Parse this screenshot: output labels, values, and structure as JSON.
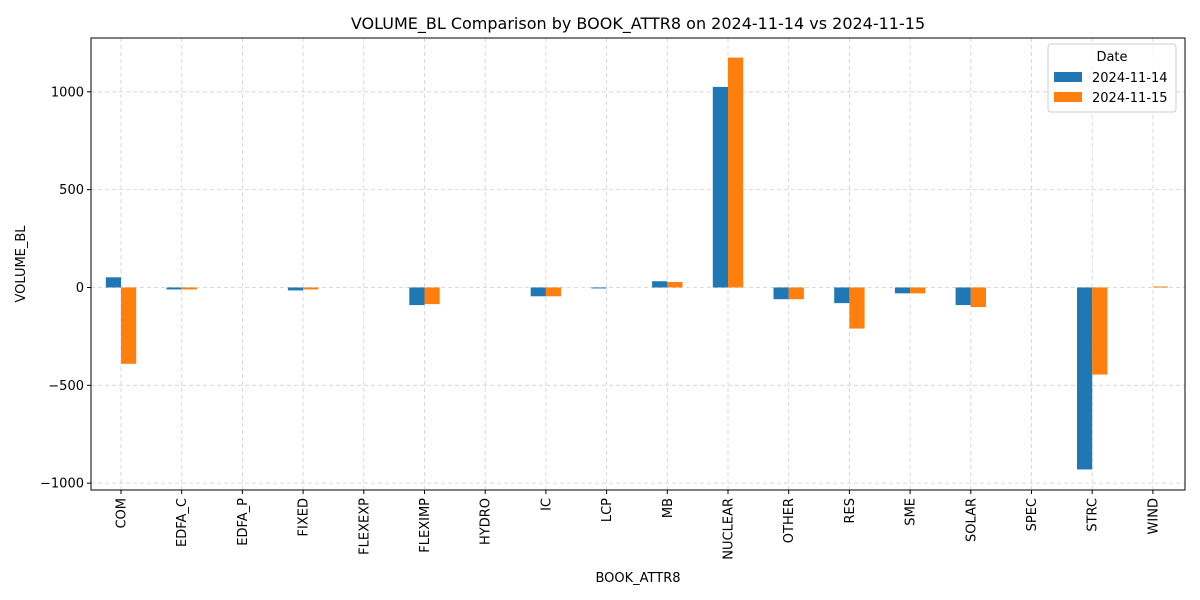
{
  "chart_data": {
    "type": "bar",
    "title": "VOLUME_BL Comparison by BOOK_ATTR8 on 2024-11-14 vs 2024-11-15",
    "xlabel": "BOOK_ATTR8",
    "ylabel": "VOLUME_BL",
    "categories": [
      "COM",
      "EDFA_C",
      "EDFA_P",
      "FIXED",
      "FLEXEXP",
      "FLEXIMP",
      "HYDRO",
      "IC",
      "LCP",
      "MB",
      "NUCLEAR",
      "OTHER",
      "RES",
      "SME",
      "SOLAR",
      "SPEC",
      "STRC",
      "WIND"
    ],
    "series": [
      {
        "name": "2024-11-14",
        "color": "#1f77b4",
        "values": [
          52,
          -10,
          0,
          -15,
          0,
          -90,
          0,
          -45,
          -5,
          32,
          1025,
          -60,
          -80,
          -30,
          -90,
          0,
          -930,
          0
        ]
      },
      {
        "name": "2024-11-15",
        "color": "#ff7f0e",
        "values": [
          -390,
          -10,
          0,
          -10,
          0,
          -85,
          0,
          -45,
          0,
          28,
          1175,
          -60,
          -210,
          -30,
          -100,
          0,
          -445,
          5
        ]
      }
    ],
    "ylim": [
      -1035,
      1275
    ],
    "yticks": [
      -1000,
      -500,
      0,
      500,
      1000
    ],
    "ytick_labels": [
      "−1000",
      "−500",
      "0",
      "500",
      "1000"
    ],
    "grid": true,
    "legend": {
      "title": "Date",
      "placement": "top-right"
    }
  }
}
